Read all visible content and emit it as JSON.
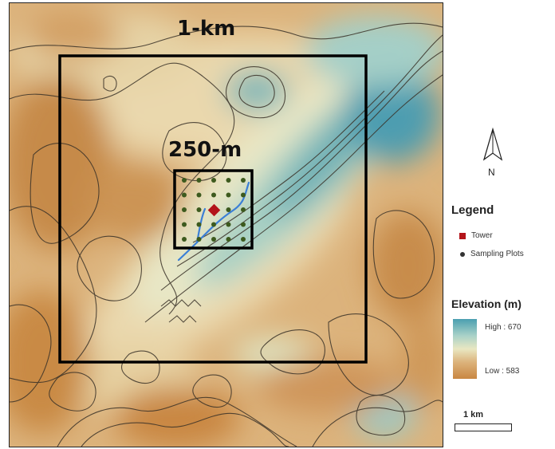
{
  "map": {
    "outer_box_label": "1-km",
    "inner_box_label": "250-m",
    "colors": {
      "high": "#4a9fb0",
      "mid": "#e9e7c2",
      "low": "#c98742",
      "contour": "#3a3228",
      "stream": "#3b7fd6",
      "tower": "#b3141a",
      "plot": "#3d5a1e",
      "box": "#000000"
    }
  },
  "north_arrow": {
    "icon": "north-arrow-icon",
    "label": "N"
  },
  "legend": {
    "title": "Legend",
    "items": [
      {
        "icon": "tower-square-icon",
        "label": "Tower",
        "color": "#b3141a"
      },
      {
        "icon": "sampling-plot-dot-icon",
        "label": "Sampling Plots",
        "color": "#333333"
      }
    ]
  },
  "elevation": {
    "title": "Elevation (m)",
    "high_label": "High : 670",
    "low_label": "Low : 583",
    "colors": [
      "#4a9fb0",
      "#e9e7c2",
      "#c98742"
    ]
  },
  "scale_bar": {
    "label": "1 km"
  }
}
